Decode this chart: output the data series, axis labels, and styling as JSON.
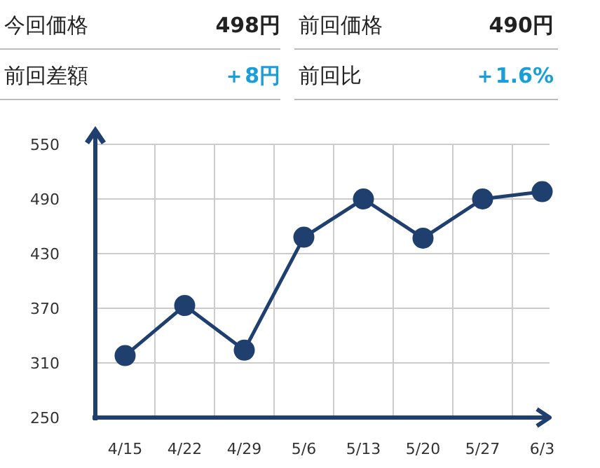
{
  "chart_data": [
    {
      "type": "other",
      "annotations": [
        "今回価格",
        "498円",
        "前回価格",
        "490円",
        "前回差額",
        "＋8円",
        "前回比",
        "＋1.6%"
      ]
    },
    {
      "type": "line",
      "categories": [
        "4/15",
        "4/22",
        "4/29",
        "5/6",
        "5/13",
        "5/20",
        "5/27",
        "6/3"
      ],
      "values": [
        318,
        373,
        324,
        448,
        490,
        447,
        490,
        498
      ],
      "color": "#1f3f6e",
      "ylim": [
        250,
        550
      ],
      "yticks": [
        250,
        310,
        370,
        430,
        490,
        550
      ],
      "grid": true,
      "marker": "circle"
    }
  ]
}
